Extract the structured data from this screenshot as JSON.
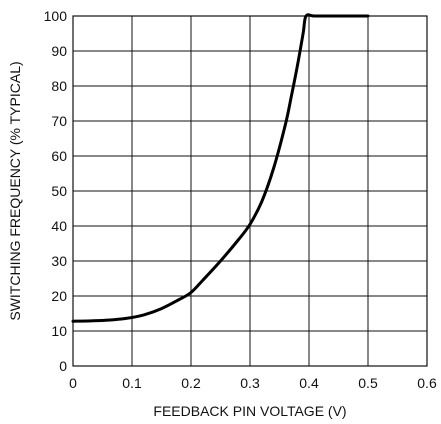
{
  "chart_data": {
    "type": "line",
    "xlabel": "FEEDBACK PIN VOLTAGE (V)",
    "ylabel": "SWITCHING FREQUENCY (% TYPICAL)",
    "xlim": [
      0,
      0.6
    ],
    "ylim": [
      0,
      100
    ],
    "x_ticks": [
      "0",
      "0.1",
      "0.2",
      "0.3",
      "0.4",
      "0.5",
      "0.6"
    ],
    "y_ticks": [
      "0",
      "10",
      "20",
      "30",
      "40",
      "50",
      "60",
      "70",
      "80",
      "90",
      "100"
    ],
    "grid": true,
    "series": [
      {
        "x": [
          0,
          0.03,
          0.06,
          0.09,
          0.12,
          0.15,
          0.18,
          0.2,
          0.22,
          0.25,
          0.28,
          0.3,
          0.32,
          0.34,
          0.36,
          0.37,
          0.38,
          0.39,
          0.395,
          0.41,
          0.45,
          0.5
        ],
        "y": [
          12.8,
          12.9,
          13.1,
          13.6,
          14.6,
          16.4,
          19.0,
          21.0,
          24.5,
          30.0,
          36.0,
          40.5,
          47.0,
          56.5,
          69.0,
          77.0,
          85.5,
          95.0,
          100,
          100,
          100,
          100
        ]
      }
    ]
  }
}
